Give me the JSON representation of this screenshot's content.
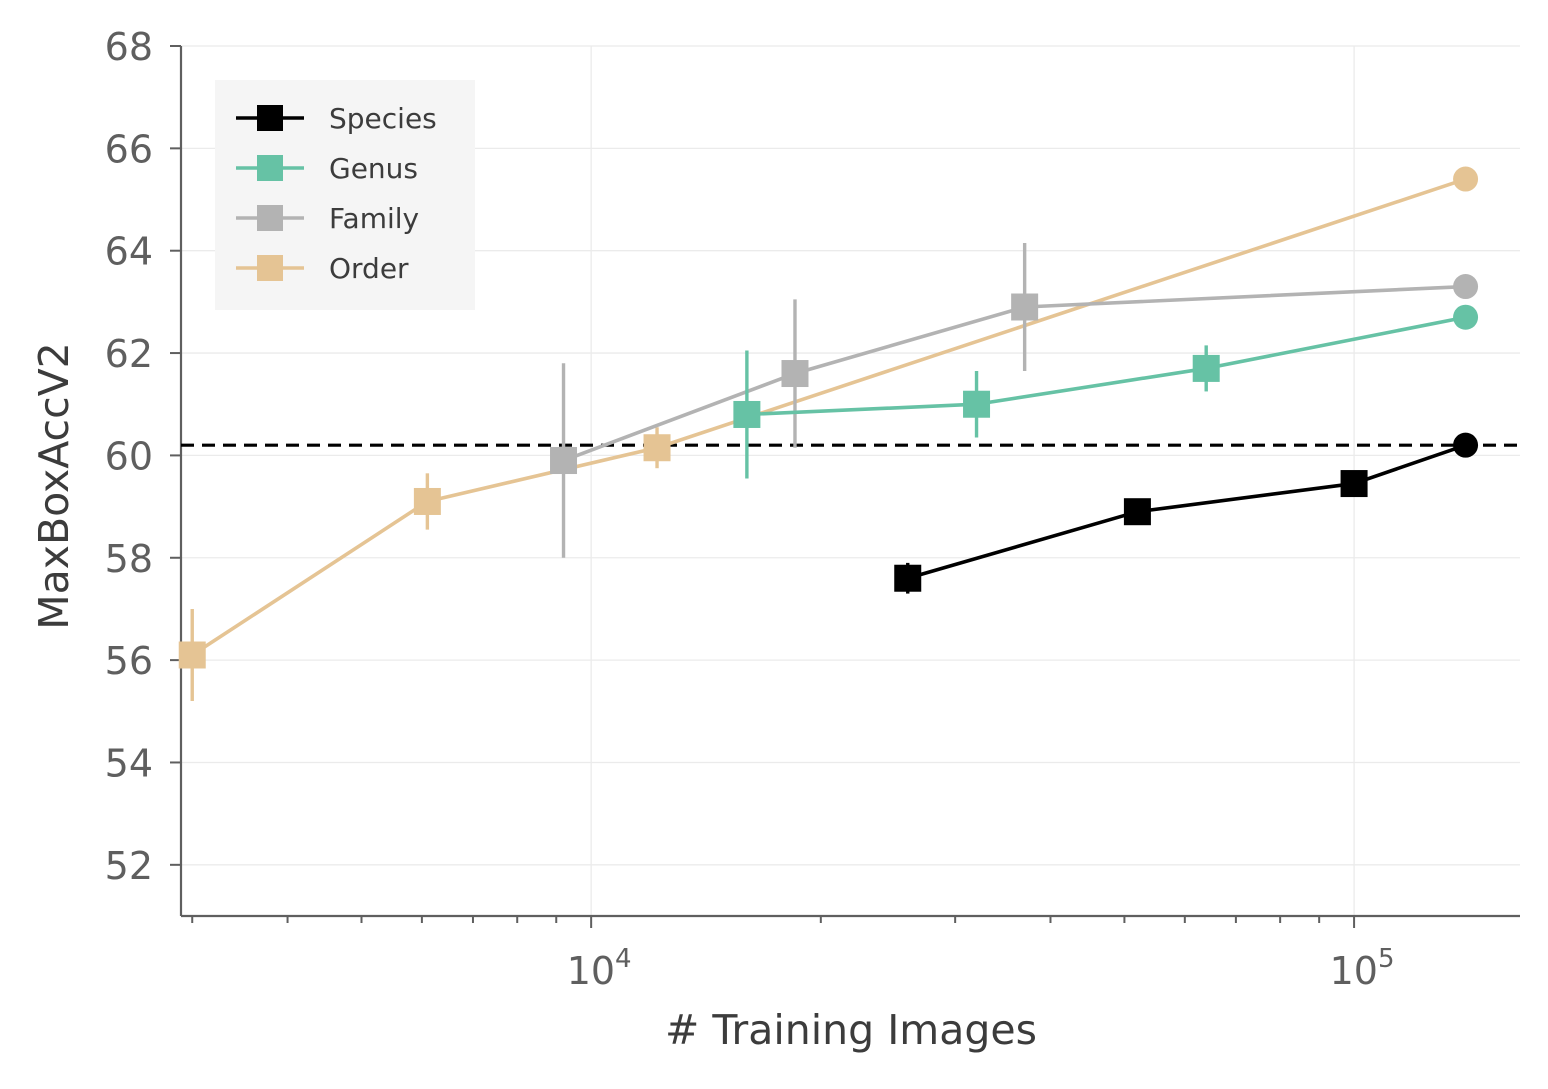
{
  "chart_data": {
    "type": "line",
    "title": "",
    "xlabel": "# Training Images",
    "ylabel": "MaxBoxAccV2",
    "xscale": "log",
    "xlim": [
      2900,
      165000
    ],
    "ylim": [
      51,
      68
    ],
    "yticks": [
      52,
      54,
      56,
      58,
      60,
      62,
      64,
      66,
      68
    ],
    "xticks": [
      {
        "value": 10000,
        "base": "10",
        "exp": "4"
      },
      {
        "value": 100000,
        "base": "10",
        "exp": "5"
      }
    ],
    "grid": true,
    "legend_position": "top-left",
    "reference_line": {
      "y": 60.2,
      "style": "dashed",
      "color": "#000000"
    },
    "series": [
      {
        "name": "Species",
        "color": "#000000",
        "points": [
          {
            "x": 26000,
            "y": 57.6,
            "err": 0.3,
            "marker": "square"
          },
          {
            "x": 52000,
            "y": 58.9,
            "err": 0.15,
            "marker": "square"
          },
          {
            "x": 100000,
            "y": 59.45,
            "err": 0.1,
            "marker": "square"
          },
          {
            "x": 140000,
            "y": 60.2,
            "err": 0,
            "marker": "circle"
          }
        ]
      },
      {
        "name": "Genus",
        "color": "#66c2a5",
        "points": [
          {
            "x": 16000,
            "y": 60.8,
            "err": 1.25,
            "marker": "square"
          },
          {
            "x": 32000,
            "y": 61.0,
            "err": 0.65,
            "marker": "square"
          },
          {
            "x": 64000,
            "y": 61.7,
            "err": 0.45,
            "marker": "square"
          },
          {
            "x": 140000,
            "y": 62.7,
            "err": 0,
            "marker": "circle"
          }
        ]
      },
      {
        "name": "Family",
        "color": "#b3b3b3",
        "points": [
          {
            "x": 9200,
            "y": 59.9,
            "err": 1.9,
            "marker": "square"
          },
          {
            "x": 18500,
            "y": 61.6,
            "err": 1.45,
            "marker": "square"
          },
          {
            "x": 37000,
            "y": 62.9,
            "err": 1.25,
            "marker": "square"
          },
          {
            "x": 140000,
            "y": 63.3,
            "err": 0,
            "marker": "circle"
          }
        ]
      },
      {
        "name": "Order",
        "color": "#e5c494",
        "points": [
          {
            "x": 3000,
            "y": 56.1,
            "err": 0.9,
            "marker": "square"
          },
          {
            "x": 6100,
            "y": 59.1,
            "err": 0.55,
            "marker": "square"
          },
          {
            "x": 12200,
            "y": 60.15,
            "err": 0.4,
            "marker": "square"
          },
          {
            "x": 140000,
            "y": 65.4,
            "err": 0,
            "marker": "circle"
          }
        ]
      }
    ]
  }
}
